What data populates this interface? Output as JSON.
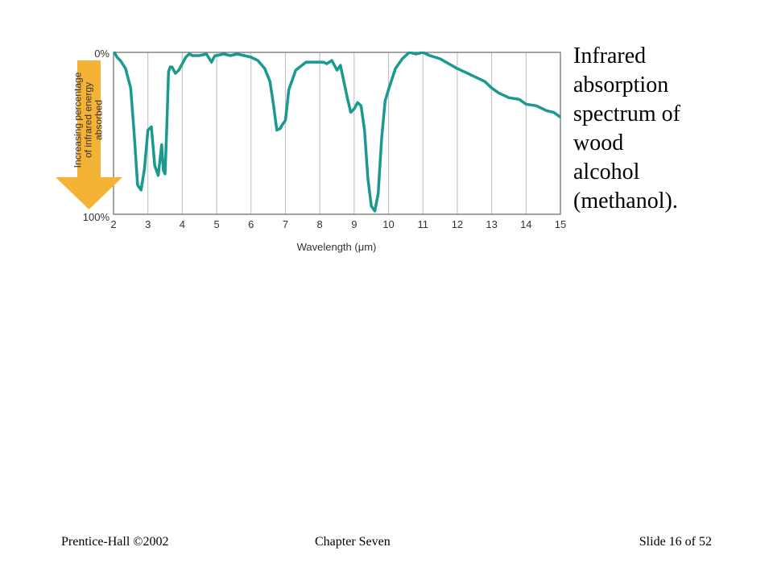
{
  "caption_lines": [
    "Infrared",
    "absorption",
    "spectrum of",
    "wood",
    "alcohol",
    "(methanol)."
  ],
  "footer": {
    "left": "Prentice-Hall ©2002",
    "center": "Chapter Seven",
    "right": "Slide 16 of 52"
  },
  "colors": {
    "curve": "#1a9a8e",
    "arrow": "#f5b335",
    "grid": "#bbbbbb",
    "frame": "#666666"
  },
  "chart_data": {
    "type": "line",
    "xlabel": "Wavelength (μm)",
    "x_ticks": [
      2,
      3,
      4,
      5,
      6,
      7,
      8,
      9,
      10,
      11,
      12,
      13,
      14,
      15
    ],
    "xlim": [
      2,
      15
    ],
    "ylim": [
      0,
      100
    ],
    "y_tick_labels": {
      "top": "0%",
      "bottom": "100%"
    },
    "y_inverted": true,
    "arrow_label_lines": [
      "Increasing percentage",
      "of infrared energy",
      "absorbed"
    ],
    "grid": "vertical",
    "series": [
      {
        "x": [
          2.0,
          2.1,
          2.2,
          2.35,
          2.5,
          2.6,
          2.7,
          2.8,
          2.9,
          3.0,
          3.1,
          3.2,
          3.3,
          3.4,
          3.45,
          3.5,
          3.55,
          3.6,
          3.65,
          3.7,
          3.8,
          3.9,
          4.0,
          4.1,
          4.2,
          4.3,
          4.5,
          4.7,
          4.85,
          4.95,
          5.0,
          5.2,
          5.4,
          5.6,
          5.8,
          6.0,
          6.2,
          6.4,
          6.55,
          6.65,
          6.75,
          6.85,
          6.9,
          7.0,
          7.1,
          7.3,
          7.6,
          7.9,
          8.1,
          8.2,
          8.35,
          8.5,
          8.6,
          8.8,
          8.9,
          9.0,
          9.1,
          9.2,
          9.3,
          9.4,
          9.5,
          9.6,
          9.7,
          9.8,
          9.9,
          10.0,
          10.2,
          10.4,
          10.6,
          10.8,
          11.0,
          11.2,
          11.5,
          12.0,
          12.5,
          12.8,
          13.0,
          13.2,
          13.5,
          13.8,
          14.0,
          14.3,
          14.6,
          14.8,
          15.0
        ],
        "y": [
          -1,
          3,
          5,
          10,
          22,
          50,
          82,
          85,
          72,
          48,
          46,
          70,
          76,
          57,
          73,
          75,
          45,
          12,
          9,
          9,
          13,
          11,
          7,
          3,
          1,
          2,
          2,
          1,
          6,
          2,
          2,
          1,
          2,
          1,
          2,
          3,
          5,
          10,
          18,
          32,
          48,
          47,
          45,
          42,
          23,
          11,
          6,
          6,
          6,
          7,
          5,
          11,
          8,
          28,
          37,
          35,
          31,
          33,
          48,
          78,
          95,
          98,
          87,
          53,
          30,
          23,
          10,
          4,
          0,
          1,
          0,
          2,
          4,
          10,
          15,
          18,
          22,
          25,
          28,
          29,
          32,
          33,
          36,
          37,
          40
        ]
      }
    ]
  }
}
